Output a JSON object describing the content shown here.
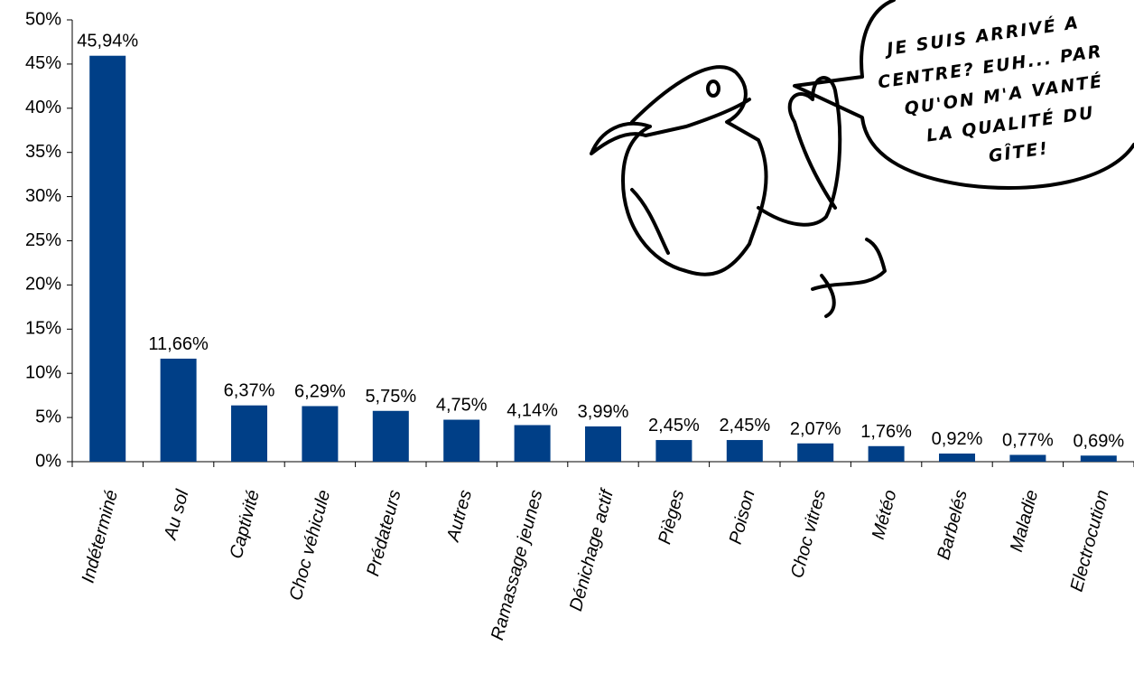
{
  "chart_data": {
    "type": "bar",
    "categories": [
      "Indéterminé",
      "Au sol",
      "Captivité",
      "Choc véhicule",
      "Prédateurs",
      "Autres",
      "Ramassage jeunes",
      "Dénichage actif",
      "Pièges",
      "Poison",
      "Choc vitres",
      "Météo",
      "Barbelés",
      "Maladie",
      "Electrocution"
    ],
    "values": [
      45.94,
      11.66,
      6.37,
      6.29,
      5.75,
      4.75,
      4.14,
      3.99,
      2.45,
      2.45,
      2.07,
      1.76,
      0.92,
      0.77,
      0.69
    ],
    "value_labels": [
      "45,94%",
      "11,66%",
      "6,37%",
      "6,29%",
      "5,75%",
      "4,75%",
      "4,14%",
      "3,99%",
      "2,45%",
      "2,45%",
      "2,07%",
      "1,76%",
      "0,92%",
      "0,77%",
      "0,69%"
    ],
    "color": "#003f87",
    "ylim": [
      0,
      50
    ],
    "yticks": [
      {
        "value": 0,
        "label": "0%"
      },
      {
        "value": 5,
        "label": "5%"
      },
      {
        "value": 10,
        "label": "10%"
      },
      {
        "value": 15,
        "label": "15%"
      },
      {
        "value": 20,
        "label": "20%"
      },
      {
        "value": 25,
        "label": "25%"
      },
      {
        "value": 30,
        "label": "30%"
      },
      {
        "value": 35,
        "label": "35%"
      },
      {
        "value": 40,
        "label": "40%"
      },
      {
        "value": 45,
        "label": "45%"
      },
      {
        "value": 50,
        "label": "50%"
      }
    ],
    "grid": false,
    "annotation": [
      "JE SUIS ARRIVÉ A",
      "CENTRE? EUH... PAR",
      "QU'ON M'A VANTÉ",
      "LA QUALITÉ DU",
      "GÎTE!"
    ]
  }
}
